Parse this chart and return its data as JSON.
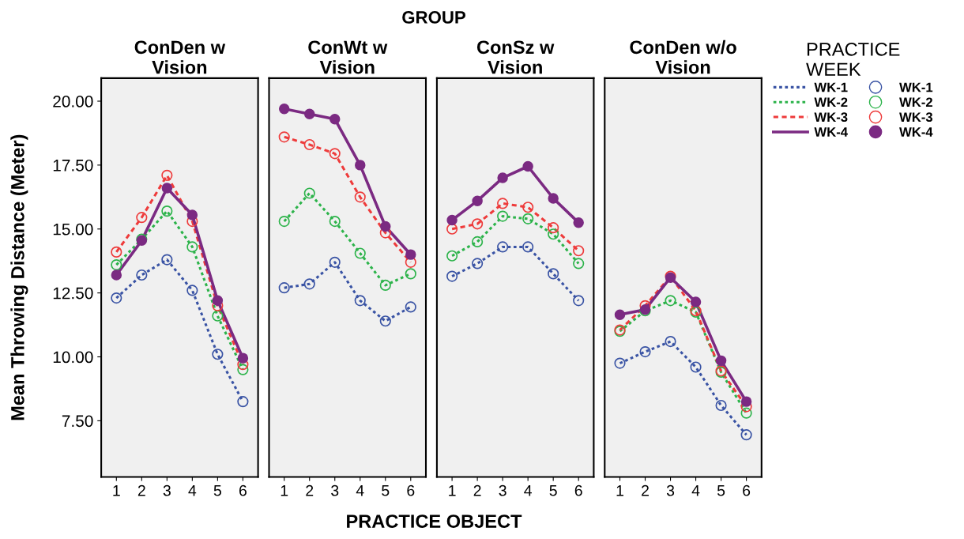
{
  "chart_data": [
    {
      "type": "line",
      "title": "ConDen w\nVision",
      "annotations": [
        "GROUP"
      ],
      "xlabel": "PRACTICE OBJECT",
      "ylabel": "Mean Throwing Distance (Meter)",
      "categories": [
        "1",
        "2",
        "3",
        "4",
        "5",
        "6"
      ],
      "ylim": [
        5.3,
        20.9
      ],
      "yticks": [
        {
          "value": 7.5,
          "label": "7.50"
        },
        {
          "value": 10,
          "label": "10.00"
        },
        {
          "value": 12.5,
          "label": "12.50"
        },
        {
          "value": 15,
          "label": "15.00"
        },
        {
          "value": 17.5,
          "label": "17.50"
        },
        {
          "value": 20,
          "label": "20.00"
        }
      ],
      "marker": "circle",
      "grid": false,
      "series": [
        {
          "color": "#3953a4",
          "line_style": "dotted",
          "values": [
            12.3,
            13.2,
            13.8,
            12.6,
            10.1,
            8.25
          ]
        },
        {
          "color": "#2cb34a",
          "line_style": "dotted",
          "values": [
            13.6,
            14.6,
            15.7,
            14.3,
            11.6,
            9.5
          ]
        },
        {
          "color": "#ee3b3b",
          "line_style": "dashed",
          "values": [
            14.1,
            15.45,
            17.1,
            15.3,
            12.0,
            9.7
          ]
        },
        {
          "color": "#7b2a82",
          "line_style": "solid",
          "values": [
            13.2,
            14.55,
            16.6,
            15.55,
            12.2,
            9.95
          ]
        }
      ]
    },
    {
      "type": "line",
      "title": "ConWt w\nVision",
      "categories": [
        "1",
        "2",
        "3",
        "4",
        "5",
        "6"
      ],
      "ylim": [
        5.3,
        20.9
      ],
      "tick_labels": "x",
      "marker": "circle",
      "grid": false,
      "series": [
        {
          "color": "#3953a4",
          "line_style": "dotted",
          "values": [
            12.7,
            12.85,
            13.7,
            12.2,
            11.4,
            11.95
          ]
        },
        {
          "color": "#2cb34a",
          "line_style": "dotted",
          "values": [
            15.3,
            16.4,
            15.3,
            14.05,
            12.8,
            13.25
          ]
        },
        {
          "color": "#ee3b3b",
          "line_style": "dashed",
          "values": [
            18.6,
            18.3,
            17.95,
            16.25,
            14.85,
            13.7
          ]
        },
        {
          "color": "#7b2a82",
          "line_style": "solid",
          "values": [
            19.7,
            19.5,
            19.3,
            17.5,
            15.1,
            14.0
          ]
        }
      ]
    },
    {
      "type": "line",
      "title": "ConSz w\nVision",
      "categories": [
        "1",
        "2",
        "3",
        "4",
        "5",
        "6"
      ],
      "ylim": [
        5.3,
        20.9
      ],
      "tick_labels": "x",
      "marker": "circle",
      "grid": false,
      "series": [
        {
          "color": "#3953a4",
          "line_style": "dotted",
          "values": [
            13.15,
            13.65,
            14.3,
            14.3,
            13.25,
            12.2
          ]
        },
        {
          "color": "#2cb34a",
          "line_style": "dotted",
          "values": [
            13.95,
            14.5,
            15.5,
            15.4,
            14.8,
            13.65
          ]
        },
        {
          "color": "#ee3b3b",
          "line_style": "dashed",
          "values": [
            15.0,
            15.2,
            16.0,
            15.85,
            15.05,
            14.15
          ]
        },
        {
          "color": "#7b2a82",
          "line_style": "solid",
          "values": [
            15.35,
            16.1,
            17.0,
            17.45,
            16.2,
            15.25
          ]
        }
      ]
    },
    {
      "type": "line",
      "title": "ConDen w/o\nVision",
      "categories": [
        "1",
        "2",
        "3",
        "4",
        "5",
        "6"
      ],
      "ylim": [
        5.3,
        20.9
      ],
      "tick_labels": "x",
      "marker": "circle",
      "grid": false,
      "legend": "right",
      "legend_title": "PRACTICE\nWEEK",
      "series": [
        {
          "name": "WK-1",
          "color": "#3953a4",
          "line_style": "dotted",
          "values": [
            9.75,
            10.2,
            10.6,
            9.6,
            8.1,
            6.95
          ]
        },
        {
          "name": "WK-2",
          "color": "#2cb34a",
          "line_style": "dotted",
          "values": [
            11.0,
            11.8,
            12.2,
            11.75,
            9.4,
            7.8
          ]
        },
        {
          "name": "WK-3",
          "color": "#ee3b3b",
          "line_style": "dashed",
          "values": [
            11.05,
            12.0,
            13.15,
            11.8,
            9.45,
            8.05
          ]
        },
        {
          "name": "WK-4",
          "color": "#7b2a82",
          "line_style": "solid",
          "values": [
            11.65,
            11.85,
            13.1,
            12.15,
            9.85,
            8.25
          ]
        }
      ]
    }
  ]
}
